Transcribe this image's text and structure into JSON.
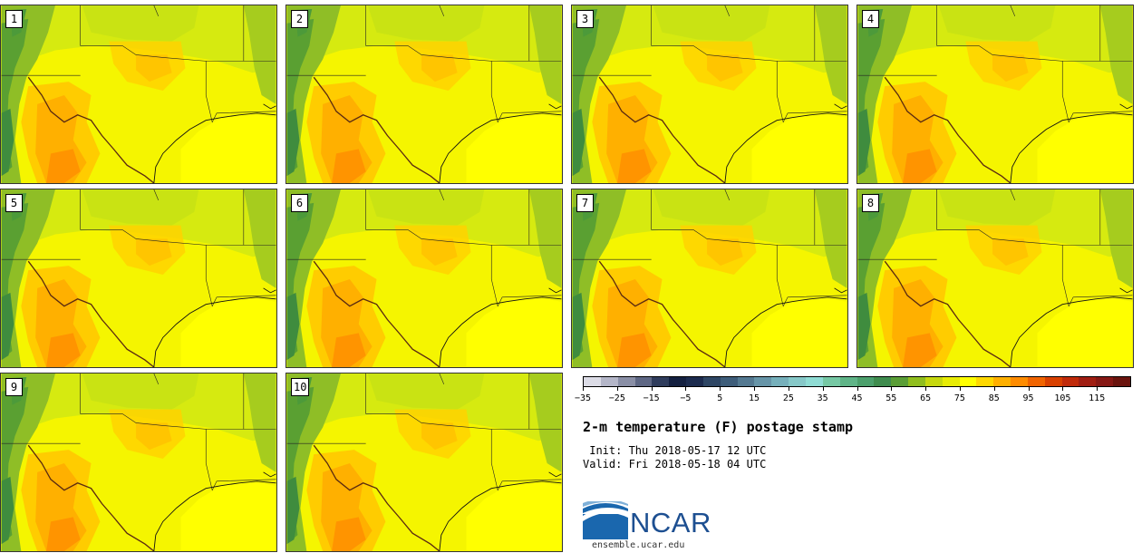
{
  "panels": [
    {
      "number": "1"
    },
    {
      "number": "2"
    },
    {
      "number": "3"
    },
    {
      "number": "4"
    },
    {
      "number": "5"
    },
    {
      "number": "6"
    },
    {
      "number": "7"
    },
    {
      "number": "8"
    },
    {
      "number": "9"
    },
    {
      "number": "10"
    }
  ],
  "colorbar": {
    "colors": [
      "#dcdce6",
      "#b4b6c8",
      "#8a8fa6",
      "#5e6784",
      "#2f3c5c",
      "#142040",
      "#1c2b4e",
      "#2e4664",
      "#3e5d7a",
      "#547991",
      "#6795a8",
      "#76b0bb",
      "#86c8c8",
      "#8fdcd4",
      "#76c8a4",
      "#5fb487",
      "#4ca06c",
      "#3f8c4e",
      "#5a9e36",
      "#90be1e",
      "#c6d80e",
      "#e8ec05",
      "#ffff00",
      "#ffd800",
      "#ffb000",
      "#ff8c00",
      "#f06400",
      "#d84000",
      "#c02a0a",
      "#a01e12",
      "#861814",
      "#6a140e"
    ],
    "tick_labels": [
      "−35",
      "−25",
      "−15",
      "−5",
      "5",
      "15",
      "25",
      "35",
      "45",
      "55",
      "65",
      "75",
      "85",
      "95",
      "105",
      "115"
    ]
  },
  "title": "2-m temperature (F) postage stamp",
  "init": " Init: Thu 2018-05-17 12 UTC",
  "valid": "Valid: Fri 2018-05-18 04 UTC",
  "logo_text": "NCAR",
  "url": "ensemble.ucar.edu"
}
